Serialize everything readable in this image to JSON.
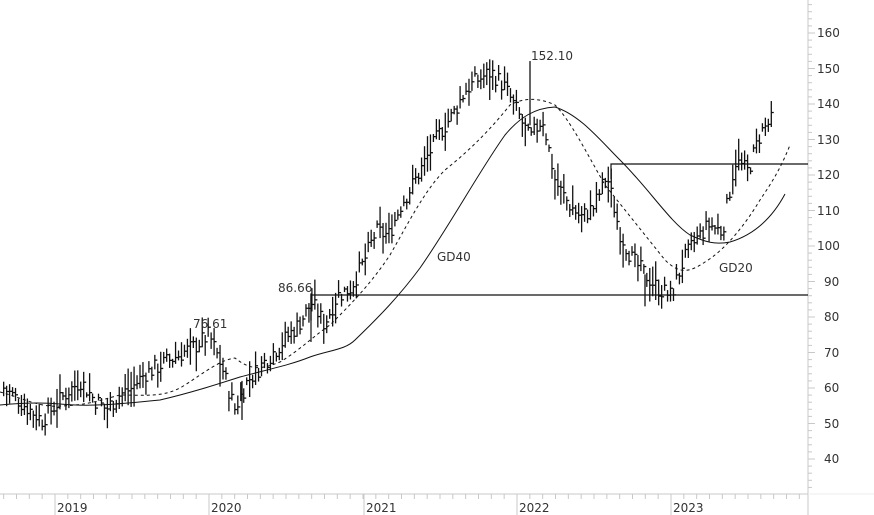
{
  "chart_data": {
    "type": "bar",
    "subtype": "ohlc-price-chart",
    "title": "",
    "xlabel": "",
    "ylabel": "",
    "ylim": [
      30,
      165
    ],
    "y_ticks": [
      40,
      50,
      60,
      70,
      80,
      90,
      100,
      110,
      120,
      130,
      140,
      150,
      160
    ],
    "x_ticks": [
      "2019",
      "2020",
      "2021",
      "2022",
      "2023"
    ],
    "grid": false,
    "legend": null,
    "annotations": [
      {
        "label": "76.61",
        "value": 76.61,
        "date": "2020-02"
      },
      {
        "label": "86.66",
        "value": 86.66,
        "date": "2020-09"
      },
      {
        "label": "152.10",
        "value": 152.1,
        "date": "2021-12"
      },
      {
        "label": "GD40",
        "type": "moving-average-label"
      },
      {
        "label": "GD20",
        "type": "moving-average-label"
      }
    ],
    "horizontal_lines": [
      {
        "value": 86.66,
        "from": "2020-09",
        "to": "end"
      },
      {
        "value": 123.0,
        "from": "2022-08",
        "to": "end"
      }
    ],
    "series": [
      {
        "name": "Price (weekly close, approx.)",
        "x": [
          "2018-09",
          "2018-10",
          "2018-11",
          "2018-12",
          "2019-01",
          "2019-02",
          "2019-03",
          "2019-04",
          "2019-05",
          "2019-06",
          "2019-07",
          "2019-08",
          "2019-09",
          "2019-10",
          "2019-11",
          "2019-12",
          "2020-01",
          "2020-02",
          "2020-03",
          "2020-04",
          "2020-05",
          "2020-06",
          "2020-07",
          "2020-08",
          "2020-09",
          "2020-10",
          "2020-11",
          "2020-12",
          "2021-01",
          "2021-02",
          "2021-03",
          "2021-04",
          "2021-05",
          "2021-06",
          "2021-07",
          "2021-08",
          "2021-09",
          "2021-10",
          "2021-11",
          "2021-12",
          "2022-01",
          "2022-02",
          "2022-03",
          "2022-04",
          "2022-05",
          "2022-06",
          "2022-07",
          "2022-08",
          "2022-09",
          "2022-10",
          "2022-11",
          "2022-12",
          "2023-01",
          "2023-02",
          "2023-03",
          "2023-04",
          "2023-05",
          "2023-06",
          "2023-07",
          "2023-08",
          "2023-09"
        ],
        "values": [
          60,
          57,
          54,
          51,
          55,
          59,
          62,
          57,
          54,
          58,
          60,
          64,
          66,
          68,
          70,
          72,
          75,
          66,
          54,
          62,
          66,
          70,
          74,
          78,
          84,
          78,
          86,
          88,
          95,
          104,
          103,
          112,
          118,
          125,
          132,
          137,
          144,
          147,
          149,
          145,
          138,
          130,
          136,
          118,
          112,
          108,
          111,
          120,
          104,
          96,
          92,
          88,
          86,
          96,
          102,
          106,
          104,
          124,
          121,
          132,
          136
        ]
      },
      {
        "name": "GD20",
        "style": "dashed",
        "x": [
          "2018-09",
          "2019-01",
          "2019-06",
          "2019-10",
          "2020-01",
          "2020-03",
          "2020-06",
          "2020-09",
          "2020-12",
          "2021-03",
          "2021-06",
          "2021-09",
          "2021-12",
          "2022-03",
          "2022-06",
          "2022-09",
          "2022-12",
          "2023-03",
          "2023-06",
          "2023-09"
        ],
        "values": [
          59,
          56,
          55,
          58,
          66,
          68,
          66,
          74,
          85,
          98,
          115,
          130,
          141,
          136,
          120,
          105,
          94,
          100,
          112,
          127
        ]
      },
      {
        "name": "GD40",
        "style": "solid",
        "x": [
          "2018-09",
          "2019-01",
          "2019-06",
          "2019-10",
          "2020-01",
          "2020-03",
          "2020-06",
          "2020-09",
          "2020-12",
          "2021-03",
          "2021-06",
          "2021-09",
          "2021-12",
          "2022-03",
          "2022-06",
          "2022-09",
          "2022-12",
          "2023-03",
          "2023-06",
          "2023-09"
        ],
        "values": [
          56,
          55,
          56,
          57,
          60,
          63,
          66,
          71,
          80,
          93,
          108,
          123,
          136,
          139,
          128,
          114,
          103,
          101,
          106,
          114
        ]
      }
    ]
  },
  "axes": {
    "y_labels": [
      "160",
      "150",
      "140",
      "130",
      "120",
      "110",
      "100",
      "90",
      "80",
      "70",
      "60",
      "50",
      "40"
    ],
    "x_labels": [
      "2019",
      "2020",
      "2021",
      "2022",
      "2023"
    ]
  },
  "labels": {
    "ann_7661": "76.61",
    "ann_8666": "86.66",
    "ann_15210": "152.10",
    "gd40": "GD40",
    "gd20": "GD20"
  },
  "colors": {
    "price": "#111111",
    "ma": "#111111",
    "axis": "#c8c8c8",
    "text": "#333333",
    "background": "#ffffff"
  }
}
